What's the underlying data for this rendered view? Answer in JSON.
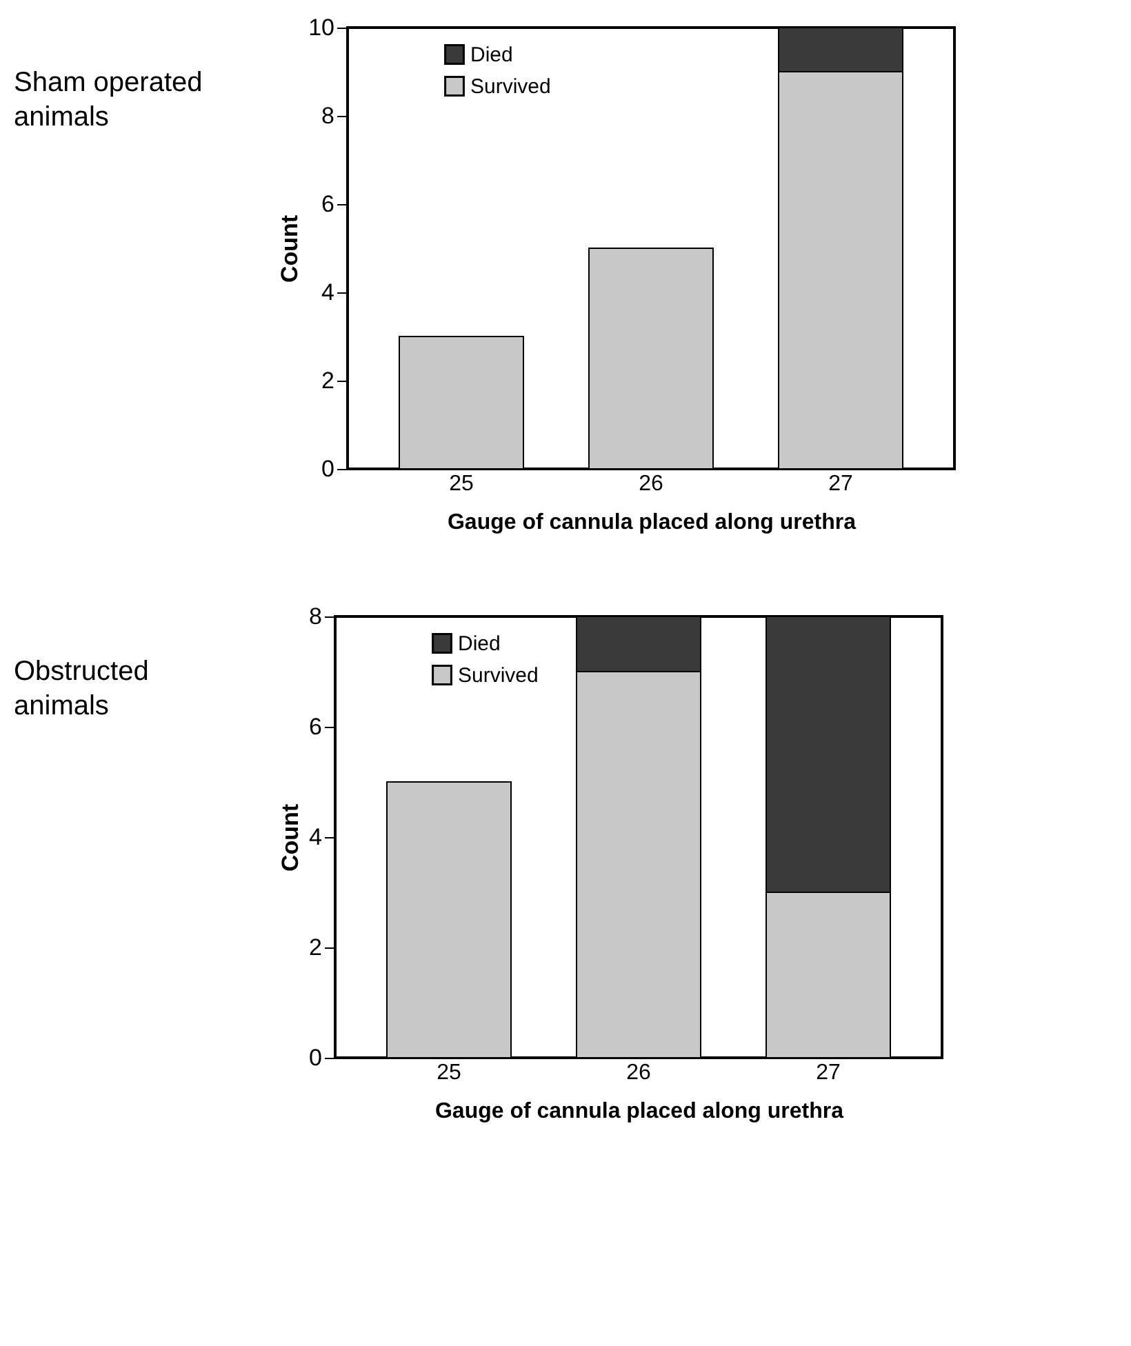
{
  "chart_data": [
    {
      "type": "bar",
      "title": "Sham operated animals",
      "categories": [
        "25",
        "26",
        "27"
      ],
      "stacked": true,
      "xlabel": "Gauge of cannula placed along urethra",
      "ylabel": "Count",
      "ylim": [
        0,
        10
      ],
      "yticks": [
        0,
        2,
        4,
        6,
        8,
        10
      ],
      "grid": false,
      "legend": "top left",
      "series": [
        {
          "name": "Survived",
          "color": "#c8c8c8",
          "values": [
            3,
            5,
            9
          ]
        },
        {
          "name": "Died",
          "color": "#3a3a3a",
          "values": [
            null,
            null,
            1
          ]
        }
      ]
    },
    {
      "type": "bar",
      "title": "Obstructed animals",
      "categories": [
        "25",
        "26",
        "27"
      ],
      "stacked": true,
      "xlabel": "Gauge of cannula placed along urethra",
      "ylabel": "Count",
      "ylim": [
        0,
        8
      ],
      "yticks": [
        0,
        2,
        4,
        6,
        8
      ],
      "grid": false,
      "legend": "top left",
      "series": [
        {
          "name": "Survived",
          "color": "#c8c8c8",
          "values": [
            5,
            7,
            3
          ]
        },
        {
          "name": "Died",
          "color": "#3a3a3a",
          "values": [
            null,
            1,
            5
          ]
        }
      ]
    }
  ]
}
